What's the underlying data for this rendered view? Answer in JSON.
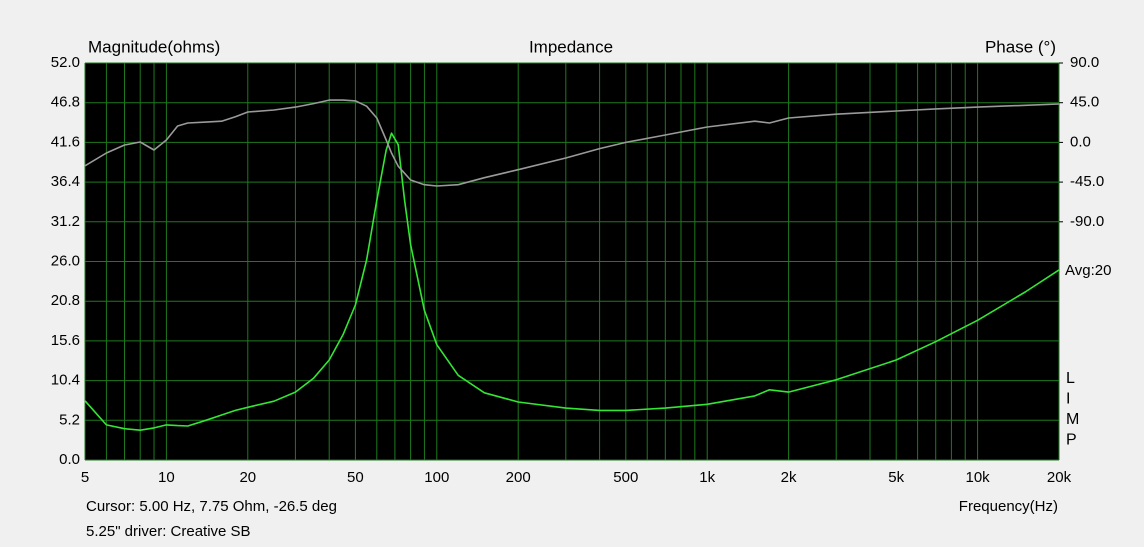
{
  "chart_data": {
    "type": "line",
    "title": "Impedance",
    "y_label": "Magnitude(ohms)",
    "y2_label": "Phase (°)",
    "x_label": "Frequency(Hz)",
    "cursor_text": "Cursor: 5.00 Hz, 7.75 Ohm, -26.5 deg",
    "caption": "5.25\" driver: Creative SB",
    "avg_label": "Avg:20",
    "side_label": [
      "L",
      "I",
      "M",
      "P"
    ],
    "xscale": "log",
    "grid": true,
    "grid_color": "#1e7a1e",
    "plot_background": "#000000",
    "xlim": [
      5,
      20000
    ],
    "xticks": [
      5,
      10,
      20,
      50,
      100,
      200,
      500,
      {
        "value": 1000,
        "label": "1k"
      },
      {
        "value": 2000,
        "label": "2k"
      },
      {
        "value": 5000,
        "label": "5k"
      },
      {
        "value": 10000,
        "label": "10k"
      },
      {
        "value": 20000,
        "label": "20k"
      }
    ],
    "minor_xticks": [
      6,
      7,
      8,
      9,
      30,
      40,
      60,
      70,
      80,
      90,
      300,
      400,
      600,
      700,
      800,
      900,
      3000,
      4000,
      6000,
      7000,
      8000,
      9000
    ],
    "ylim": [
      0,
      52
    ],
    "yticks": [
      {
        "value": 0,
        "label": "0.0"
      },
      {
        "value": 5.2,
        "label": "5.2"
      },
      {
        "value": 10.4,
        "label": "10.4"
      },
      {
        "value": 15.6,
        "label": "15.6"
      },
      {
        "value": 20.8,
        "label": "20.8"
      },
      {
        "value": 26,
        "label": "26.0"
      },
      {
        "value": 31.2,
        "label": "31.2"
      },
      {
        "value": 36.4,
        "label": "36.4"
      },
      {
        "value": 41.6,
        "label": "41.6"
      },
      {
        "value": 46.8,
        "label": "46.8"
      },
      {
        "value": 52,
        "label": "52.0"
      }
    ],
    "y2lim": [
      -360,
      90
    ],
    "y2ticks": [
      {
        "value": 90,
        "label": "90.0"
      },
      {
        "value": 45,
        "label": "45.0"
      },
      {
        "value": 0,
        "label": "0.0"
      },
      {
        "value": -45,
        "label": "-45.0"
      },
      {
        "value": -90,
        "label": "-90.0"
      }
    ],
    "x": [
      5,
      6,
      7,
      8,
      9,
      10,
      11,
      12,
      14,
      16,
      18,
      20,
      25,
      30,
      35,
      40,
      45,
      50,
      55,
      60,
      65,
      68,
      72,
      76,
      80,
      90,
      100,
      120,
      150,
      200,
      300,
      400,
      500,
      700,
      1000,
      1500,
      1700,
      2000,
      3000,
      5000,
      7000,
      10000,
      15000,
      20000
    ],
    "series": [
      {
        "color": "#33e633",
        "values": [
          7.75,
          4.6,
          4.1,
          3.9,
          4.2,
          4.6,
          4.5,
          4.45,
          5.2,
          5.9,
          6.5,
          6.9,
          7.7,
          8.9,
          10.7,
          13.1,
          16.4,
          20.3,
          26.2,
          34.0,
          40.6,
          42.8,
          41.3,
          34.0,
          28.2,
          19.6,
          15.1,
          11.1,
          8.8,
          7.6,
          6.8,
          6.5,
          6.5,
          6.8,
          7.3,
          8.4,
          9.2,
          8.9,
          10.5,
          13.1,
          15.5,
          18.3,
          22.0,
          24.9
        ]
      },
      {
        "color": "#9a9a9a",
        "axis": "y2",
        "values": [
          -26.5,
          -12,
          -3,
          0.5,
          -8.6,
          2.7,
          18.6,
          22,
          23,
          24,
          29,
          34.5,
          36.7,
          40,
          44,
          48,
          48,
          47,
          41,
          27.7,
          2.7,
          -12,
          -27,
          -35,
          -42.6,
          -48,
          -49.4,
          -48,
          -40,
          -31,
          -17.7,
          -7,
          0,
          8.4,
          17.4,
          24,
          22,
          27.7,
          32,
          35.6,
          38,
          40,
          42,
          43.5
        ]
      }
    ]
  }
}
